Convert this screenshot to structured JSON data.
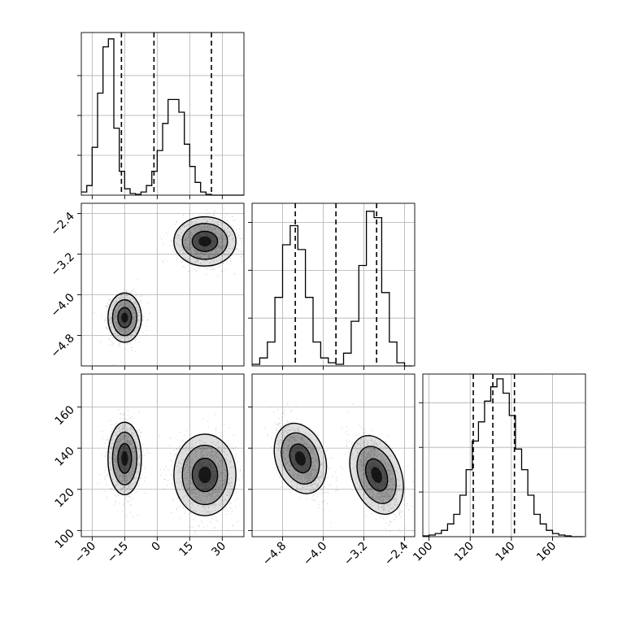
{
  "chart_data": {
    "type": "corner",
    "parameters": [
      {
        "name": "",
        "range": [
          -35,
          40
        ],
        "ticks": [
          -30,
          -15,
          0,
          15,
          30
        ],
        "tick_labels": [
          "−30",
          "−15",
          "0",
          "15",
          "30"
        ]
      },
      {
        "name": "",
        "range": [
          -5.4,
          -2.2
        ],
        "ticks": [
          -4.8,
          -4.0,
          -3.2,
          -2.4
        ],
        "tick_labels": [
          "−4.8",
          "−4.0",
          "−3.2",
          "−2.4"
        ]
      },
      {
        "name": "",
        "range": [
          97,
          176
        ],
        "ticks": [
          100,
          120,
          140,
          160
        ],
        "tick_labels": [
          "100",
          "120",
          "140",
          "160"
        ]
      }
    ],
    "quantiles": [
      [
        -16.5,
        -1.5,
        25
      ],
      [
        -4.55,
        -3.75,
        -2.95
      ],
      [
        121.5,
        131,
        141.5
      ]
    ],
    "histograms": [
      {
        "bin_edges": [
          -35,
          -32.5,
          -30,
          -27.5,
          -25,
          -22.5,
          -20,
          -17.5,
          -15,
          -12.5,
          -10,
          -7.5,
          -5,
          -2.5,
          0,
          2.5,
          5,
          7.5,
          10,
          12.5,
          15,
          17.5,
          20,
          22.5,
          25,
          27.5,
          30,
          32.5,
          35,
          37.5,
          40
        ],
        "counts": [
          0.02,
          0.06,
          0.3,
          0.64,
          0.93,
          0.98,
          0.42,
          0.15,
          0.04,
          0.01,
          0.005,
          0.02,
          0.06,
          0.15,
          0.28,
          0.45,
          0.6,
          0.6,
          0.52,
          0.32,
          0.18,
          0.08,
          0.02,
          0.005,
          0,
          0,
          0,
          0,
          0,
          0
        ],
        "yticks": [
          0.25,
          0.5,
          0.75
        ]
      },
      {
        "bin_edges": [
          -5.4,
          -5.25,
          -5.1,
          -4.95,
          -4.8,
          -4.65,
          -4.5,
          -4.35,
          -4.2,
          -4.05,
          -3.9,
          -3.75,
          -3.6,
          -3.45,
          -3.3,
          -3.15,
          -3.0,
          -2.85,
          -2.7,
          -2.55,
          -2.4,
          -2.25
        ],
        "counts": [
          0.01,
          0.05,
          0.15,
          0.43,
          0.76,
          0.88,
          0.73,
          0.43,
          0.15,
          0.05,
          0.02,
          0.01,
          0.08,
          0.28,
          0.63,
          0.97,
          0.93,
          0.46,
          0.15,
          0.02,
          0
        ],
        "yticks": [
          0.3,
          0.6,
          0.9
        ]
      },
      {
        "bin_edges": [
          97,
          100,
          103,
          106,
          109,
          112,
          115,
          118,
          121,
          124,
          127,
          130,
          133,
          136,
          139,
          142,
          145,
          148,
          151,
          154,
          157,
          160,
          163,
          166,
          169,
          172,
          175
        ],
        "counts": [
          0.005,
          0.01,
          0.02,
          0.04,
          0.08,
          0.14,
          0.26,
          0.42,
          0.6,
          0.72,
          0.85,
          0.94,
          0.99,
          0.9,
          0.76,
          0.55,
          0.42,
          0.26,
          0.14,
          0.08,
          0.04,
          0.02,
          0.01,
          0.005,
          0,
          0
        ],
        "yticks": [
          0.28,
          0.56,
          0.84
        ]
      }
    ],
    "clusters": [
      {
        "mean": [
          -15,
          -4.45,
          135
        ],
        "sd": [
          3.5,
          0.22,
          8
        ]
      },
      {
        "mean": [
          22,
          -2.95,
          127
        ],
        "sd": [
          6.5,
          0.22,
          9
        ]
      }
    ],
    "pair_correlation": {
      "0-1": 0.0,
      "0-2": 0.0,
      "1-2": -0.55
    },
    "contour_levels": [
      0.9,
      1.6,
      2.2
    ],
    "grid": true,
    "title": "",
    "xlabel": "",
    "ylabel": ""
  }
}
